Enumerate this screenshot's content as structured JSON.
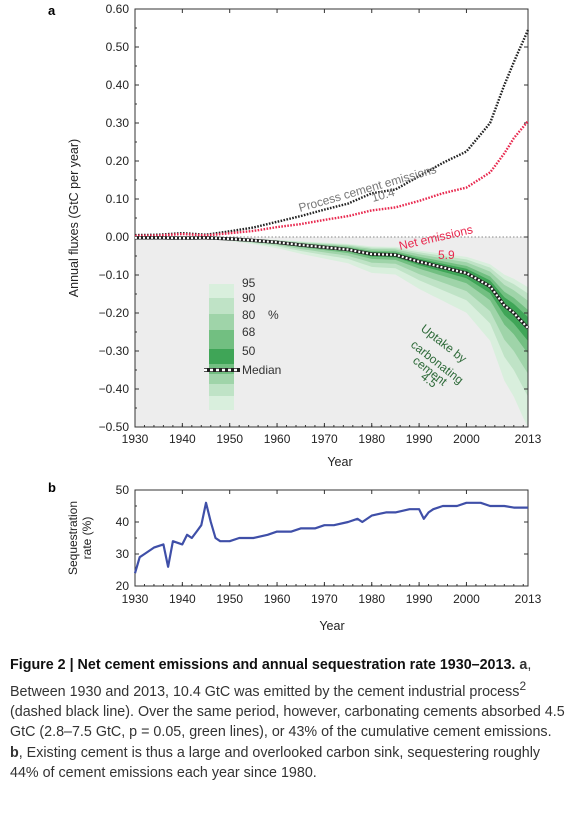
{
  "chart_data": [
    {
      "panel": "a",
      "type": "line",
      "ylabel": "Annual fluxes (GtC per year)",
      "xlabel": "Year",
      "xlim": [
        1930,
        2013
      ],
      "ylim": [
        -0.5,
        0.6
      ],
      "xticks": [
        "1930",
        "1940",
        "1950",
        "1960",
        "1970",
        "1980",
        "1990",
        "2000",
        "2013"
      ],
      "yticks": [
        "0.60",
        "0.50",
        "0.40",
        "0.30",
        "0.20",
        "0.10",
        "0.00",
        "−0.10",
        "−0.20",
        "−0.30",
        "−0.40",
        "−0.50"
      ],
      "x": [
        1930,
        1935,
        1940,
        1945,
        1950,
        1955,
        1960,
        1965,
        1970,
        1975,
        1980,
        1985,
        1990,
        1995,
        2000,
        2005,
        2008,
        2010,
        2013
      ],
      "series": [
        {
          "name": "Process cement emissions",
          "total": "10.4",
          "color": "#222222",
          "values": [
            0.005,
            0.006,
            0.01,
            0.006,
            0.015,
            0.025,
            0.04,
            0.055,
            0.072,
            0.088,
            0.115,
            0.125,
            0.16,
            0.195,
            0.225,
            0.3,
            0.4,
            0.46,
            0.545
          ]
        },
        {
          "name": "Net emissions",
          "total": "5.9",
          "color": "#e8294f",
          "values": [
            0.003,
            0.004,
            0.008,
            0.004,
            0.01,
            0.016,
            0.026,
            0.034,
            0.045,
            0.055,
            0.07,
            0.078,
            0.095,
            0.115,
            0.13,
            0.17,
            0.22,
            0.26,
            0.305
          ]
        },
        {
          "name": "Uptake by carbonating cement",
          "total": "4.5",
          "color": "#2e8b45",
          "values": [
            -0.002,
            -0.002,
            -0.003,
            -0.002,
            -0.005,
            -0.009,
            -0.014,
            -0.021,
            -0.027,
            -0.033,
            -0.045,
            -0.047,
            -0.065,
            -0.08,
            -0.095,
            -0.13,
            -0.18,
            -0.2,
            -0.24
          ]
        }
      ],
      "uncertainty_bands": [
        "95",
        "90",
        "80",
        "68",
        "50"
      ],
      "band_legend_unit": "%",
      "median_label": "Median",
      "annotations": {
        "process_label": "Process cement emissions",
        "process_total": "10.4",
        "net_label": "Net emissions",
        "net_total": "5.9",
        "uptake_lines": [
          "Uptake by",
          "carbonating",
          "cement",
          "4.5"
        ]
      }
    },
    {
      "panel": "b",
      "type": "line",
      "ylabel_lines": [
        "Sequestration",
        "rate (%)"
      ],
      "xlabel": "Year",
      "xlim": [
        1930,
        2013
      ],
      "ylim": [
        20,
        50
      ],
      "xticks": [
        "1930",
        "1940",
        "1950",
        "1960",
        "1970",
        "1980",
        "1990",
        "2000",
        "2013"
      ],
      "yticks": [
        "50",
        "40",
        "30",
        "20"
      ],
      "series": [
        {
          "name": "",
          "color": "#3f4fa8",
          "x": [
            1930,
            1931,
            1932,
            1934,
            1936,
            1937,
            1938,
            1940,
            1941,
            1942,
            1943,
            1944,
            1945,
            1946,
            1947,
            1948,
            1950,
            1952,
            1955,
            1958,
            1960,
            1963,
            1965,
            1968,
            1970,
            1972,
            1975,
            1977,
            1978,
            1980,
            1983,
            1985,
            1988,
            1989,
            1990,
            1991,
            1992,
            1993,
            1995,
            1998,
            2000,
            2003,
            2005,
            2008,
            2010,
            2013
          ],
          "values": [
            24,
            29,
            30,
            32,
            33,
            26,
            34,
            33,
            36,
            35,
            37,
            39,
            46,
            40,
            35,
            34,
            34,
            35,
            35,
            36,
            37,
            37,
            38,
            38,
            39,
            39,
            40,
            41,
            40,
            42,
            43,
            43,
            44,
            44,
            44,
            41,
            43,
            44,
            45,
            45,
            46,
            46,
            45,
            45,
            44.5,
            44.5
          ]
        }
      ]
    }
  ],
  "panel_labels": {
    "a": "a",
    "b": "b"
  },
  "caption": {
    "title": "Figure 2 | Net cement emissions and annual sequestration rate 1930–2013.",
    "a_label": "a",
    "a_text_1": ", Between 1930 and 2013, 10.4 GtC was emitted by the cement industrial process",
    "a_sup": "2",
    "a_text_2": " (dashed black line). Over the same period, however, carbonating cements absorbed 4.5 GtC (2.8–7.5 GtC, p = 0.05, green lines), or 43% of the cumulative cement emissions.",
    "b_label": "b",
    "b_text": ", Existing cement is thus a large and overlooked carbon sink, sequestering roughly 44% of cement emissions each year since 1980."
  }
}
